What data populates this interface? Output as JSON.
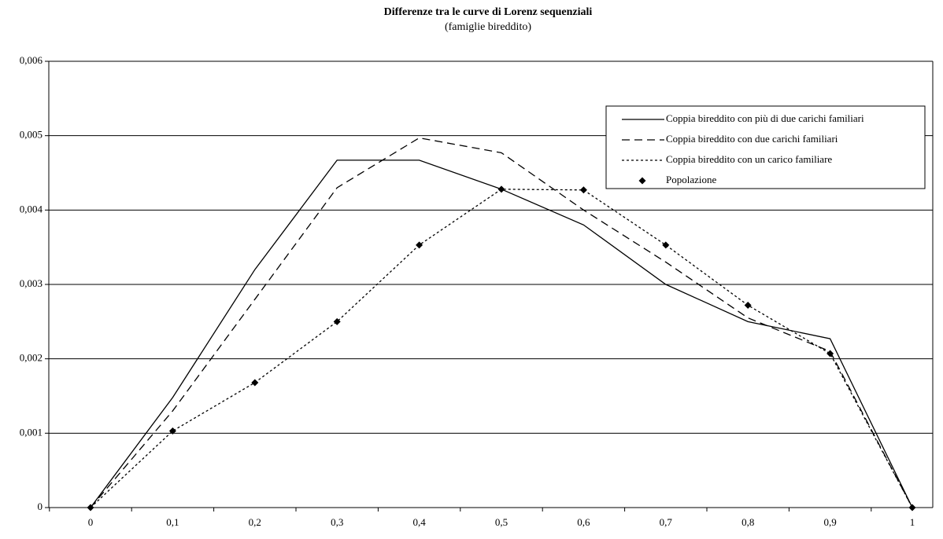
{
  "chart_data": {
    "type": "line",
    "title": "Differenze tra le curve di Lorenz sequenziali",
    "subtitle": "(famiglie bireddito)",
    "categories": [
      "0",
      "0,1",
      "0,2",
      "0,3",
      "0,4",
      "0,5",
      "0,6",
      "0,7",
      "0,8",
      "0,9",
      "1"
    ],
    "series": [
      {
        "name": "Coppia bireddito con più di due carichi familiari",
        "color": "#000000",
        "dash": "solid",
        "values": [
          0,
          0.00148,
          0.0032,
          0.00467,
          0.00467,
          0.00428,
          0.0038,
          0.003,
          0.0025,
          0.00227,
          0
        ]
      },
      {
        "name": "Coppia bireddito con due carichi familiari",
        "color": "#000000",
        "dash": "dashed",
        "values": [
          0,
          0.0013,
          0.0028,
          0.0043,
          0.00497,
          0.00477,
          0.004,
          0.0033,
          0.00255,
          0.0021,
          0
        ]
      },
      {
        "name": "Coppia bireddito con un carico familiare",
        "color": "#000000",
        "dash": "dotted",
        "values": [
          0,
          0.00103,
          0.00168,
          0.0025,
          0.00353,
          0.00428,
          0.00427,
          0.00353,
          0.00272,
          0.00207,
          0
        ]
      },
      {
        "name": "Popolazione",
        "color": "#000000",
        "dash": "marker",
        "values": [
          0,
          0.00103,
          0.00168,
          0.0025,
          0.00353,
          0.00428,
          0.00427,
          0.00353,
          0.00272,
          0.00207,
          0
        ]
      }
    ],
    "ylim": [
      0,
      0.006
    ],
    "yticks": [
      0,
      {
        "value": 0.001,
        "label": "0,001"
      },
      {
        "value": 0.002,
        "label": "0,002"
      },
      {
        "value": 0.003,
        "label": "0,003"
      },
      {
        "value": 0.004,
        "label": "0,004"
      },
      {
        "value": 0.005,
        "label": "0,005"
      },
      {
        "value": 0.006,
        "label": "0,006"
      }
    ],
    "grid": true,
    "legend": "top-right"
  }
}
